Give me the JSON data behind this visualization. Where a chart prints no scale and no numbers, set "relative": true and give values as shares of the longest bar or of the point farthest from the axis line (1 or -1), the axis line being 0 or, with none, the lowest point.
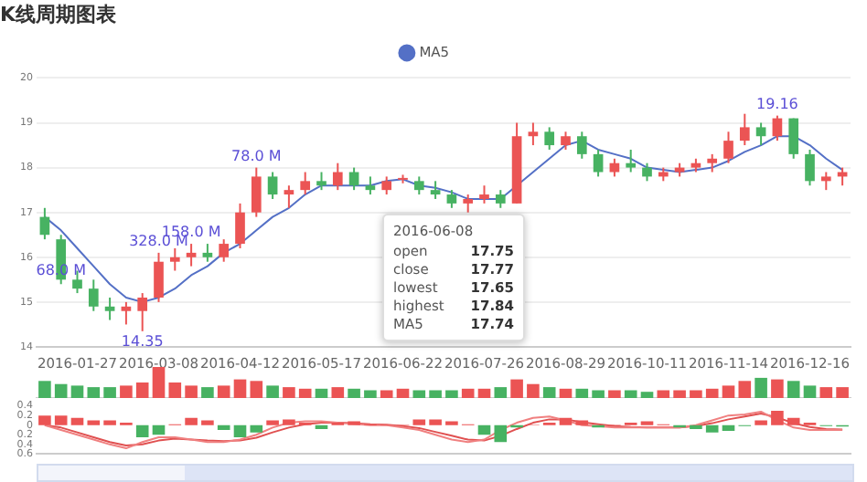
{
  "chart_data": [
    {
      "type": "candlestick",
      "title": "K线周期图表",
      "categories": [
        null,
        null,
        "2016-01-27",
        null,
        null,
        null,
        null,
        "2016-03-08",
        null,
        null,
        null,
        null,
        "2016-04-12",
        null,
        null,
        null,
        null,
        "2016-05-17",
        null,
        null,
        null,
        null,
        "2016-06-22",
        null,
        null,
        null,
        null,
        "2016-07-26",
        null,
        null,
        null,
        null,
        "2016-08-29",
        null,
        null,
        null,
        null,
        "2016-10-11",
        null,
        null,
        null,
        null,
        "2016-11-14",
        null,
        null,
        null,
        null,
        "2016-12-16",
        null,
        null
      ],
      "ohlc": [
        [
          16.9,
          17.1,
          16.4,
          16.5
        ],
        [
          16.4,
          16.5,
          15.4,
          15.5
        ],
        [
          15.5,
          15.7,
          15.2,
          15.3
        ],
        [
          15.3,
          15.5,
          14.8,
          14.9
        ],
        [
          14.9,
          15.1,
          14.6,
          14.8
        ],
        [
          14.8,
          15.0,
          14.5,
          14.9
        ],
        [
          14.8,
          15.2,
          14.35,
          15.1
        ],
        [
          15.1,
          16.1,
          15.0,
          15.9
        ],
        [
          15.9,
          16.2,
          15.7,
          16.0
        ],
        [
          16.0,
          16.3,
          15.8,
          16.1
        ],
        [
          16.1,
          16.3,
          15.9,
          16.0
        ],
        [
          16.0,
          16.4,
          15.9,
          16.3
        ],
        [
          16.3,
          17.2,
          16.2,
          17.0
        ],
        [
          17.0,
          18.0,
          16.9,
          17.8
        ],
        [
          17.8,
          17.9,
          17.3,
          17.4
        ],
        [
          17.4,
          17.6,
          17.1,
          17.5
        ],
        [
          17.5,
          17.9,
          17.4,
          17.7
        ],
        [
          17.7,
          17.9,
          17.5,
          17.6
        ],
        [
          17.6,
          18.1,
          17.5,
          17.9
        ],
        [
          17.9,
          18.0,
          17.5,
          17.6
        ],
        [
          17.6,
          17.8,
          17.4,
          17.5
        ],
        [
          17.5,
          17.8,
          17.4,
          17.7
        ],
        [
          17.75,
          17.84,
          17.65,
          17.77
        ],
        [
          17.7,
          17.8,
          17.4,
          17.5
        ],
        [
          17.5,
          17.7,
          17.3,
          17.4
        ],
        [
          17.4,
          17.5,
          17.1,
          17.2
        ],
        [
          17.2,
          17.4,
          17.0,
          17.3
        ],
        [
          17.3,
          17.6,
          17.2,
          17.4
        ],
        [
          17.4,
          17.5,
          17.1,
          17.2
        ],
        [
          17.2,
          19.0,
          17.2,
          18.7
        ],
        [
          18.7,
          19.0,
          18.5,
          18.8
        ],
        [
          18.8,
          18.9,
          18.4,
          18.5
        ],
        [
          18.5,
          18.8,
          18.4,
          18.7
        ],
        [
          18.7,
          18.8,
          18.2,
          18.3
        ],
        [
          18.3,
          18.4,
          17.8,
          17.9
        ],
        [
          17.9,
          18.2,
          17.8,
          18.1
        ],
        [
          18.1,
          18.4,
          17.9,
          18.0
        ],
        [
          18.0,
          18.1,
          17.7,
          17.8
        ],
        [
          17.8,
          18.0,
          17.7,
          17.9
        ],
        [
          17.9,
          18.1,
          17.8,
          18.0
        ],
        [
          18.0,
          18.2,
          17.9,
          18.1
        ],
        [
          18.1,
          18.3,
          17.9,
          18.2
        ],
        [
          18.2,
          18.8,
          18.1,
          18.6
        ],
        [
          18.6,
          19.2,
          18.5,
          18.9
        ],
        [
          18.9,
          19.0,
          18.5,
          18.7
        ],
        [
          18.7,
          19.16,
          18.6,
          19.1
        ],
        [
          19.1,
          19.1,
          18.2,
          18.3
        ],
        [
          18.3,
          18.4,
          17.6,
          17.7
        ],
        [
          17.7,
          17.9,
          17.5,
          17.8
        ],
        [
          17.8,
          18.0,
          17.6,
          17.9
        ]
      ],
      "colors": [
        "#47b262",
        "#47b262",
        "#47b262",
        "#47b262",
        "#47b262",
        "#eb5454",
        "#eb5454",
        "#eb5454",
        "#eb5454",
        "#eb5454",
        "#47b262",
        "#eb5454",
        "#eb5454",
        "#eb5454",
        "#47b262",
        "#eb5454",
        "#eb5454",
        "#47b262",
        "#eb5454",
        "#47b262",
        "#47b262",
        "#eb5454",
        "#eb5454",
        "#47b262",
        "#47b262",
        "#47b262",
        "#eb5454",
        "#eb5454",
        "#47b262",
        "#eb5454",
        "#eb5454",
        "#47b262",
        "#eb5454",
        "#47b262",
        "#47b262",
        "#eb5454",
        "#47b262",
        "#47b262",
        "#eb5454",
        "#eb5454",
        "#eb5454",
        "#eb5454",
        "#eb5454",
        "#eb5454",
        "#47b262",
        "#eb5454",
        "#47b262",
        "#47b262",
        "#eb5454",
        "#eb5454"
      ],
      "series": [
        {
          "type": "line",
          "name": "MA5",
          "color": "#5470c6",
          "values": [
            16.9,
            16.6,
            16.2,
            15.8,
            15.4,
            15.1,
            15.0,
            15.1,
            15.3,
            15.6,
            15.8,
            16.1,
            16.3,
            16.6,
            16.9,
            17.1,
            17.4,
            17.6,
            17.6,
            17.6,
            17.6,
            17.7,
            17.74,
            17.6,
            17.55,
            17.45,
            17.3,
            17.3,
            17.3,
            17.6,
            17.9,
            18.2,
            18.5,
            18.6,
            18.4,
            18.3,
            18.2,
            18.0,
            17.95,
            17.9,
            17.95,
            18.0,
            18.15,
            18.35,
            18.5,
            18.7,
            18.7,
            18.5,
            18.2,
            17.95
          ]
        }
      ],
      "ylim": [
        14,
        20
      ],
      "yticks": [
        14,
        15,
        16,
        17,
        18,
        19,
        20
      ],
      "grid": "y",
      "legend": "top",
      "marker": "none",
      "annotations": [
        {
          "text": "68.0 M",
          "y": 15.5
        },
        {
          "text": "14.35",
          "y": 14.35
        },
        {
          "text": "328.0 M",
          "y": 16.1
        },
        {
          "text": "158.0 M",
          "y": 16.3
        },
        {
          "text": "78.0 M",
          "y": 18.0
        },
        {
          "text": "19.16",
          "y": 19.16
        },
        "2016-06-08",
        "open",
        "17.75",
        "close",
        "17.77",
        "lowest",
        "17.65",
        "highest",
        "17.84",
        "MA5",
        "17.74"
      ]
    },
    {
      "type": "bar",
      "relative": true,
      "tick_labels": false,
      "categories": [
        null,
        null,
        null,
        null,
        null,
        null,
        null,
        null,
        null,
        null,
        null,
        null,
        null,
        null,
        null,
        null,
        null,
        null,
        null,
        null,
        null,
        null,
        null,
        null,
        null,
        null,
        null,
        null,
        null,
        null,
        null,
        null,
        null,
        null,
        null,
        null,
        null,
        null,
        null,
        null,
        null,
        null,
        null,
        null,
        null,
        null,
        null,
        null,
        null,
        null
      ],
      "values": [
        0.55,
        0.45,
        0.4,
        0.35,
        0.35,
        0.4,
        0.5,
        1,
        0.5,
        0.4,
        0.35,
        0.4,
        0.6,
        0.55,
        0.4,
        0.35,
        0.3,
        0.3,
        0.35,
        0.3,
        0.25,
        0.25,
        0.3,
        0.25,
        0.25,
        0.25,
        0.3,
        0.3,
        0.35,
        0.6,
        0.45,
        0.35,
        0.3,
        0.3,
        0.25,
        0.25,
        0.25,
        0.2,
        0.25,
        0.25,
        0.25,
        0.3,
        0.4,
        0.55,
        0.65,
        0.6,
        0.55,
        0.4,
        0.35,
        0.35
      ],
      "colors": [
        "#47b262",
        "#47b262",
        "#47b262",
        "#47b262",
        "#47b262",
        "#eb5454",
        "#eb5454",
        "#eb5454",
        "#eb5454",
        "#eb5454",
        "#47b262",
        "#eb5454",
        "#eb5454",
        "#eb5454",
        "#47b262",
        "#eb5454",
        "#eb5454",
        "#47b262",
        "#eb5454",
        "#47b262",
        "#47b262",
        "#eb5454",
        "#eb5454",
        "#47b262",
        "#47b262",
        "#47b262",
        "#eb5454",
        "#eb5454",
        "#47b262",
        "#eb5454",
        "#eb5454",
        "#47b262",
        "#eb5454",
        "#47b262",
        "#47b262",
        "#eb5454",
        "#47b262",
        "#47b262",
        "#eb5454",
        "#eb5454",
        "#eb5454",
        "#eb5454",
        "#eb5454",
        "#eb5454",
        "#47b262",
        "#eb5454",
        "#47b262",
        "#47b262",
        "#eb5454",
        "#eb5454"
      ]
    },
    {
      "type": "bar",
      "tick_labels": "y",
      "marker": "none",
      "categories": [
        null,
        null,
        null,
        null,
        null,
        null,
        null,
        null,
        null,
        null,
        null,
        null,
        null,
        null,
        null,
        null,
        null,
        null,
        null,
        null,
        null,
        null,
        null,
        null,
        null,
        null,
        null,
        null,
        null,
        null,
        null,
        null,
        null,
        null,
        null,
        null,
        null,
        null,
        null,
        null,
        null,
        null,
        null,
        null,
        null,
        null,
        null,
        null,
        null,
        null
      ],
      "series": [
        {
          "type": "bar",
          "values": [
            0.2,
            0.2,
            0.15,
            0.1,
            0.1,
            0.05,
            -0.25,
            -0.2,
            0.02,
            0.15,
            0.1,
            -0.1,
            -0.25,
            -0.15,
            0.1,
            0.12,
            0.05,
            -0.08,
            0.05,
            0.08,
            0.02,
            0.01,
            0.01,
            0.12,
            0.12,
            0.08,
            0.02,
            -0.2,
            -0.35,
            -0.05,
            0.01,
            0.05,
            0.15,
            0.1,
            -0.05,
            0.01,
            0.05,
            0.08,
            0.02,
            -0.05,
            -0.08,
            -0.15,
            -0.12,
            -0.02,
            0.1,
            0.3,
            0.15,
            0.05,
            -0.02,
            -0.03
          ],
          "colors": [
            "#eb5454",
            "#eb5454",
            "#eb5454",
            "#eb5454",
            "#eb5454",
            "#eb5454",
            "#47b262",
            "#47b262",
            "#eb5454",
            "#eb5454",
            "#eb5454",
            "#47b262",
            "#47b262",
            "#47b262",
            "#eb5454",
            "#eb5454",
            "#eb5454",
            "#47b262",
            "#eb5454",
            "#eb5454",
            "#eb5454",
            "#eb5454",
            "#eb5454",
            "#eb5454",
            "#eb5454",
            "#eb5454",
            "#eb5454",
            "#47b262",
            "#47b262",
            "#47b262",
            "#eb5454",
            "#eb5454",
            "#eb5454",
            "#eb5454",
            "#47b262",
            "#eb5454",
            "#eb5454",
            "#eb5454",
            "#eb5454",
            "#47b262",
            "#47b262",
            "#47b262",
            "#47b262",
            "#47b262",
            "#eb5454",
            "#eb5454",
            "#eb5454",
            "#eb5454",
            "#47b262",
            "#47b262"
          ]
        },
        {
          "type": "line",
          "color": "#f08080",
          "values": [
            0.0,
            -0.1,
            -0.2,
            -0.3,
            -0.4,
            -0.48,
            -0.35,
            -0.25,
            -0.25,
            -0.3,
            -0.35,
            -0.35,
            -0.3,
            -0.2,
            -0.05,
            0.05,
            0.08,
            0.08,
            0.05,
            0.03,
            0.0,
            0.0,
            -0.05,
            -0.1,
            -0.2,
            -0.3,
            -0.35,
            -0.3,
            -0.1,
            0.05,
            0.15,
            0.18,
            0.1,
            0.0,
            -0.02,
            -0.05,
            -0.05,
            -0.05,
            -0.05,
            -0.05,
            0.0,
            0.1,
            0.2,
            0.22,
            0.28,
            0.1,
            -0.05,
            -0.1,
            -0.1,
            -0.1
          ]
        },
        {
          "type": "line",
          "color": "#e05050",
          "values": [
            0.0,
            -0.05,
            -0.15,
            -0.25,
            -0.35,
            -0.42,
            -0.4,
            -0.32,
            -0.28,
            -0.3,
            -0.32,
            -0.33,
            -0.32,
            -0.26,
            -0.15,
            -0.05,
            0.02,
            0.05,
            0.05,
            0.04,
            0.02,
            0.01,
            -0.02,
            -0.06,
            -0.14,
            -0.22,
            -0.3,
            -0.32,
            -0.22,
            -0.08,
            0.05,
            0.12,
            0.12,
            0.06,
            0.02,
            -0.02,
            -0.04,
            -0.05,
            -0.05,
            -0.05,
            -0.02,
            0.04,
            0.12,
            0.18,
            0.24,
            0.16,
            0.04,
            -0.04,
            -0.08,
            -0.09
          ]
        }
      ],
      "ylim": [
        -0.6,
        0.4
      ],
      "yticks": [
        {
          "value": -0.6,
          "label": "0.6"
        },
        {
          "value": -0.4,
          "label": "0.4"
        },
        {
          "value": -0.2,
          "label": "0.2"
        },
        0,
        0.2,
        0.4
      ]
    }
  ]
}
